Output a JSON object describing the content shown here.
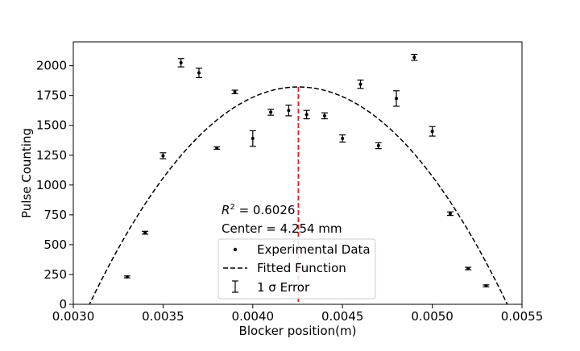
{
  "chart_data": {
    "type": "scatter",
    "xlabel": "Blocker position(m)",
    "ylabel": "Pulse Counting",
    "xlim": [
      0.003,
      0.0055
    ],
    "ylim": [
      0,
      2200
    ],
    "x_ticks": [
      "0.0030",
      "0.0035",
      "0.0040",
      "0.0045",
      "0.0050",
      "0.0055"
    ],
    "x_tick_values": [
      0.003,
      0.0035,
      0.004,
      0.0045,
      0.005,
      0.0055
    ],
    "y_ticks": [
      "0",
      "250",
      "500",
      "750",
      "1000",
      "1250",
      "1500",
      "1750",
      "2000"
    ],
    "y_tick_values": [
      0,
      250,
      500,
      750,
      1000,
      1250,
      1500,
      1750,
      2000
    ],
    "grid": false,
    "legend_placement": "lower-center",
    "series": [
      {
        "name": "Experimental Data",
        "kind": "points_with_errorbars",
        "color": "#000000",
        "x": [
          0.0033,
          0.0034,
          0.0035,
          0.0036,
          0.0037,
          0.0038,
          0.0039,
          0.004,
          0.0041,
          0.0042,
          0.0043,
          0.0044,
          0.0045,
          0.0046,
          0.0047,
          0.0048,
          0.0049,
          0.005,
          0.0051,
          0.0052,
          0.0053
        ],
        "y": [
          230,
          600,
          1245,
          2025,
          1940,
          1310,
          1780,
          1390,
          1610,
          1625,
          1590,
          1580,
          1390,
          1845,
          1330,
          1725,
          2070,
          1450,
          760,
          300,
          155
        ],
        "yerr": [
          8,
          12,
          25,
          35,
          40,
          10,
          15,
          65,
          25,
          45,
          35,
          25,
          30,
          35,
          25,
          65,
          25,
          40,
          15,
          10,
          8
        ]
      },
      {
        "name": "Fitted Function",
        "kind": "parabola_dashed",
        "color": "#000000",
        "vertex_x": 0.004254,
        "vertex_y": 1822,
        "root_x": 0.00309
      },
      {
        "name": "1 σ Error",
        "kind": "errorbar_legend"
      }
    ],
    "center_line": {
      "x": 0.004254,
      "color": "#d62728"
    },
    "annotations": {
      "r2_prefix": "R",
      "r2_sup": "2",
      "r2_suffix": " = 0.6026",
      "center": "Center = 4.254 mm"
    },
    "legend": {
      "entries": [
        "Experimental Data",
        "Fitted Function",
        "1 σ Error"
      ]
    }
  }
}
